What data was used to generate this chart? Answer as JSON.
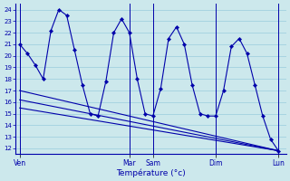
{
  "xlabel": "Température (°c)",
  "background_color": "#cce8ec",
  "line_color": "#0000aa",
  "grid_color": "#99ccdd",
  "ylim": [
    11.5,
    24.5
  ],
  "yticks": [
    12,
    13,
    14,
    15,
    16,
    17,
    18,
    19,
    20,
    21,
    22,
    23,
    24
  ],
  "day_labels": [
    "Ven",
    "Mar",
    "Sam",
    "Dim",
    "Lun"
  ],
  "day_positions": [
    0,
    14,
    17,
    25,
    33
  ],
  "xlim": [
    -0.5,
    34
  ],
  "main_line": {
    "x": [
      0,
      1,
      2,
      3,
      4,
      5,
      6,
      7,
      8,
      9,
      10,
      11,
      12,
      13,
      14,
      15,
      16,
      17,
      18,
      19,
      20,
      21,
      22,
      23,
      24,
      25,
      26,
      27,
      28,
      29,
      30,
      31,
      32,
      33
    ],
    "y": [
      21,
      20.2,
      19.2,
      18.0,
      22.2,
      24.0,
      23.5,
      20.5,
      17.5,
      15.0,
      14.8,
      17.8,
      22.0,
      23.2,
      22.0,
      18.0,
      15.0,
      14.8,
      17.2,
      21.5,
      22.5,
      21.0,
      17.5,
      15.0,
      14.8,
      14.8,
      17.0,
      20.8,
      21.5,
      20.2,
      17.5,
      14.8,
      12.8,
      11.8
    ]
  },
  "trend_lines": [
    {
      "x": [
        0,
        33
      ],
      "y": [
        17.0,
        11.8
      ]
    },
    {
      "x": [
        0,
        33
      ],
      "y": [
        16.2,
        11.8
      ]
    },
    {
      "x": [
        0,
        33
      ],
      "y": [
        15.5,
        11.8
      ]
    }
  ]
}
